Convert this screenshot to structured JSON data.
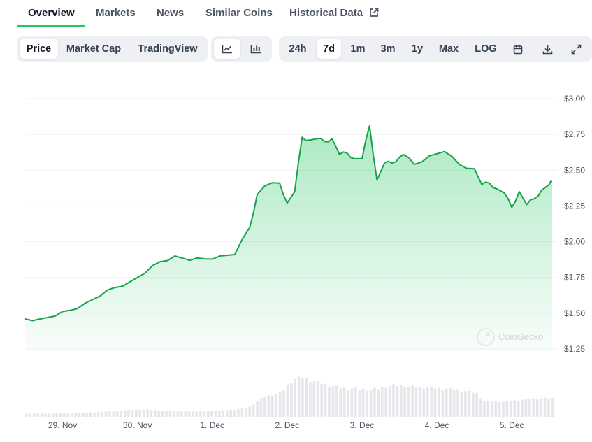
{
  "tabs": {
    "overview": "Overview",
    "markets": "Markets",
    "news": "News",
    "similar_coins": "Similar Coins",
    "historical_data": "Historical Data"
  },
  "chart_type_tabs": {
    "price": "Price",
    "market_cap": "Market Cap",
    "tradingview": "TradingView"
  },
  "range_tabs": {
    "h24": "24h",
    "d7": "7d",
    "m1": "1m",
    "m3": "3m",
    "y1": "1y",
    "max": "Max",
    "log": "LOG"
  },
  "selected": {
    "tab": "Overview",
    "chart_type": "Price",
    "range": "7d",
    "view": "line"
  },
  "watermark": "CoinGecko",
  "colors": {
    "accent": "#22c55e",
    "line": "#16a34a",
    "text": "#111827",
    "muted": "#4b5563"
  },
  "icons": [
    "external-link-icon",
    "line-chart-icon",
    "candlestick-chart-icon",
    "calendar-icon",
    "download-icon",
    "expand-icon",
    "coingecko-logo-icon"
  ],
  "chart_data": {
    "type": "line",
    "xlabel": "",
    "ylabel": "",
    "x_ticks": [
      "29. Nov",
      "30. Nov",
      "1. Dec",
      "2. Dec",
      "3. Dec",
      "4. Dec",
      "5. Dec"
    ],
    "x_tick_positions": [
      0.5,
      1.5,
      2.5,
      3.5,
      4.5,
      5.5,
      6.5
    ],
    "y_ticks": [
      "$1.25",
      "$1.50",
      "$1.75",
      "$2.00",
      "$2.25",
      "$2.50",
      "$2.75",
      "$3.00"
    ],
    "y_tick_values": [
      1.25,
      1.5,
      1.75,
      2.0,
      2.25,
      2.5,
      2.75,
      3.0
    ],
    "ylim": [
      1.25,
      3.0
    ],
    "xlim": [
      0,
      7.04
    ],
    "grid": true,
    "series": [
      {
        "x": [
          0,
          0.2,
          0.4,
          0.6,
          0.8,
          1.0,
          1.2,
          1.4,
          1.6,
          1.8,
          2.0,
          2.2,
          2.4,
          2.6,
          2.8,
          3.0,
          3.1,
          3.2,
          3.4,
          3.5,
          3.6,
          3.7,
          3.8,
          3.9,
          4.0,
          4.1,
          4.2,
          4.3,
          4.4,
          4.5,
          4.6,
          4.7,
          4.8,
          4.9,
          5.0,
          5.05,
          5.2,
          5.4,
          5.6,
          5.8,
          6.0,
          6.1,
          6.2,
          6.3,
          6.4,
          6.5,
          6.6,
          6.7,
          6.8,
          6.9,
          7.0,
          7.04
        ],
        "y": [
          1.46,
          1.46,
          1.48,
          1.52,
          1.57,
          1.62,
          1.68,
          1.72,
          1.78,
          1.86,
          1.9,
          1.87,
          1.88,
          1.9,
          1.91,
          2.1,
          2.33,
          2.39,
          2.41,
          2.27,
          2.35,
          2.73,
          2.71,
          2.72,
          2.7,
          2.72,
          2.61,
          2.62,
          2.58,
          2.58,
          2.81,
          2.43,
          2.55,
          2.55,
          2.59,
          2.61,
          2.54,
          2.6,
          2.63,
          2.54,
          2.51,
          2.4,
          2.41,
          2.37,
          2.34,
          2.24,
          2.35,
          2.26,
          2.3,
          2.36,
          2.4,
          2.42
        ],
        "volume": [
          0.08,
          0.08,
          0.08,
          0.09,
          0.1,
          0.12,
          0.15,
          0.17,
          0.18,
          0.16,
          0.14,
          0.14,
          0.14,
          0.16,
          0.18,
          0.25,
          0.4,
          0.5,
          0.6,
          0.8,
          0.95,
          0.98,
          0.9,
          0.85,
          0.8,
          0.76,
          0.72,
          0.7,
          0.7,
          0.68,
          0.68,
          0.7,
          0.75,
          0.78,
          0.78,
          0.76,
          0.74,
          0.72,
          0.7,
          0.66,
          0.6,
          0.4,
          0.38,
          0.37,
          0.38,
          0.4,
          0.42,
          0.44,
          0.46,
          0.46,
          0.46,
          0.47
        ]
      }
    ]
  }
}
